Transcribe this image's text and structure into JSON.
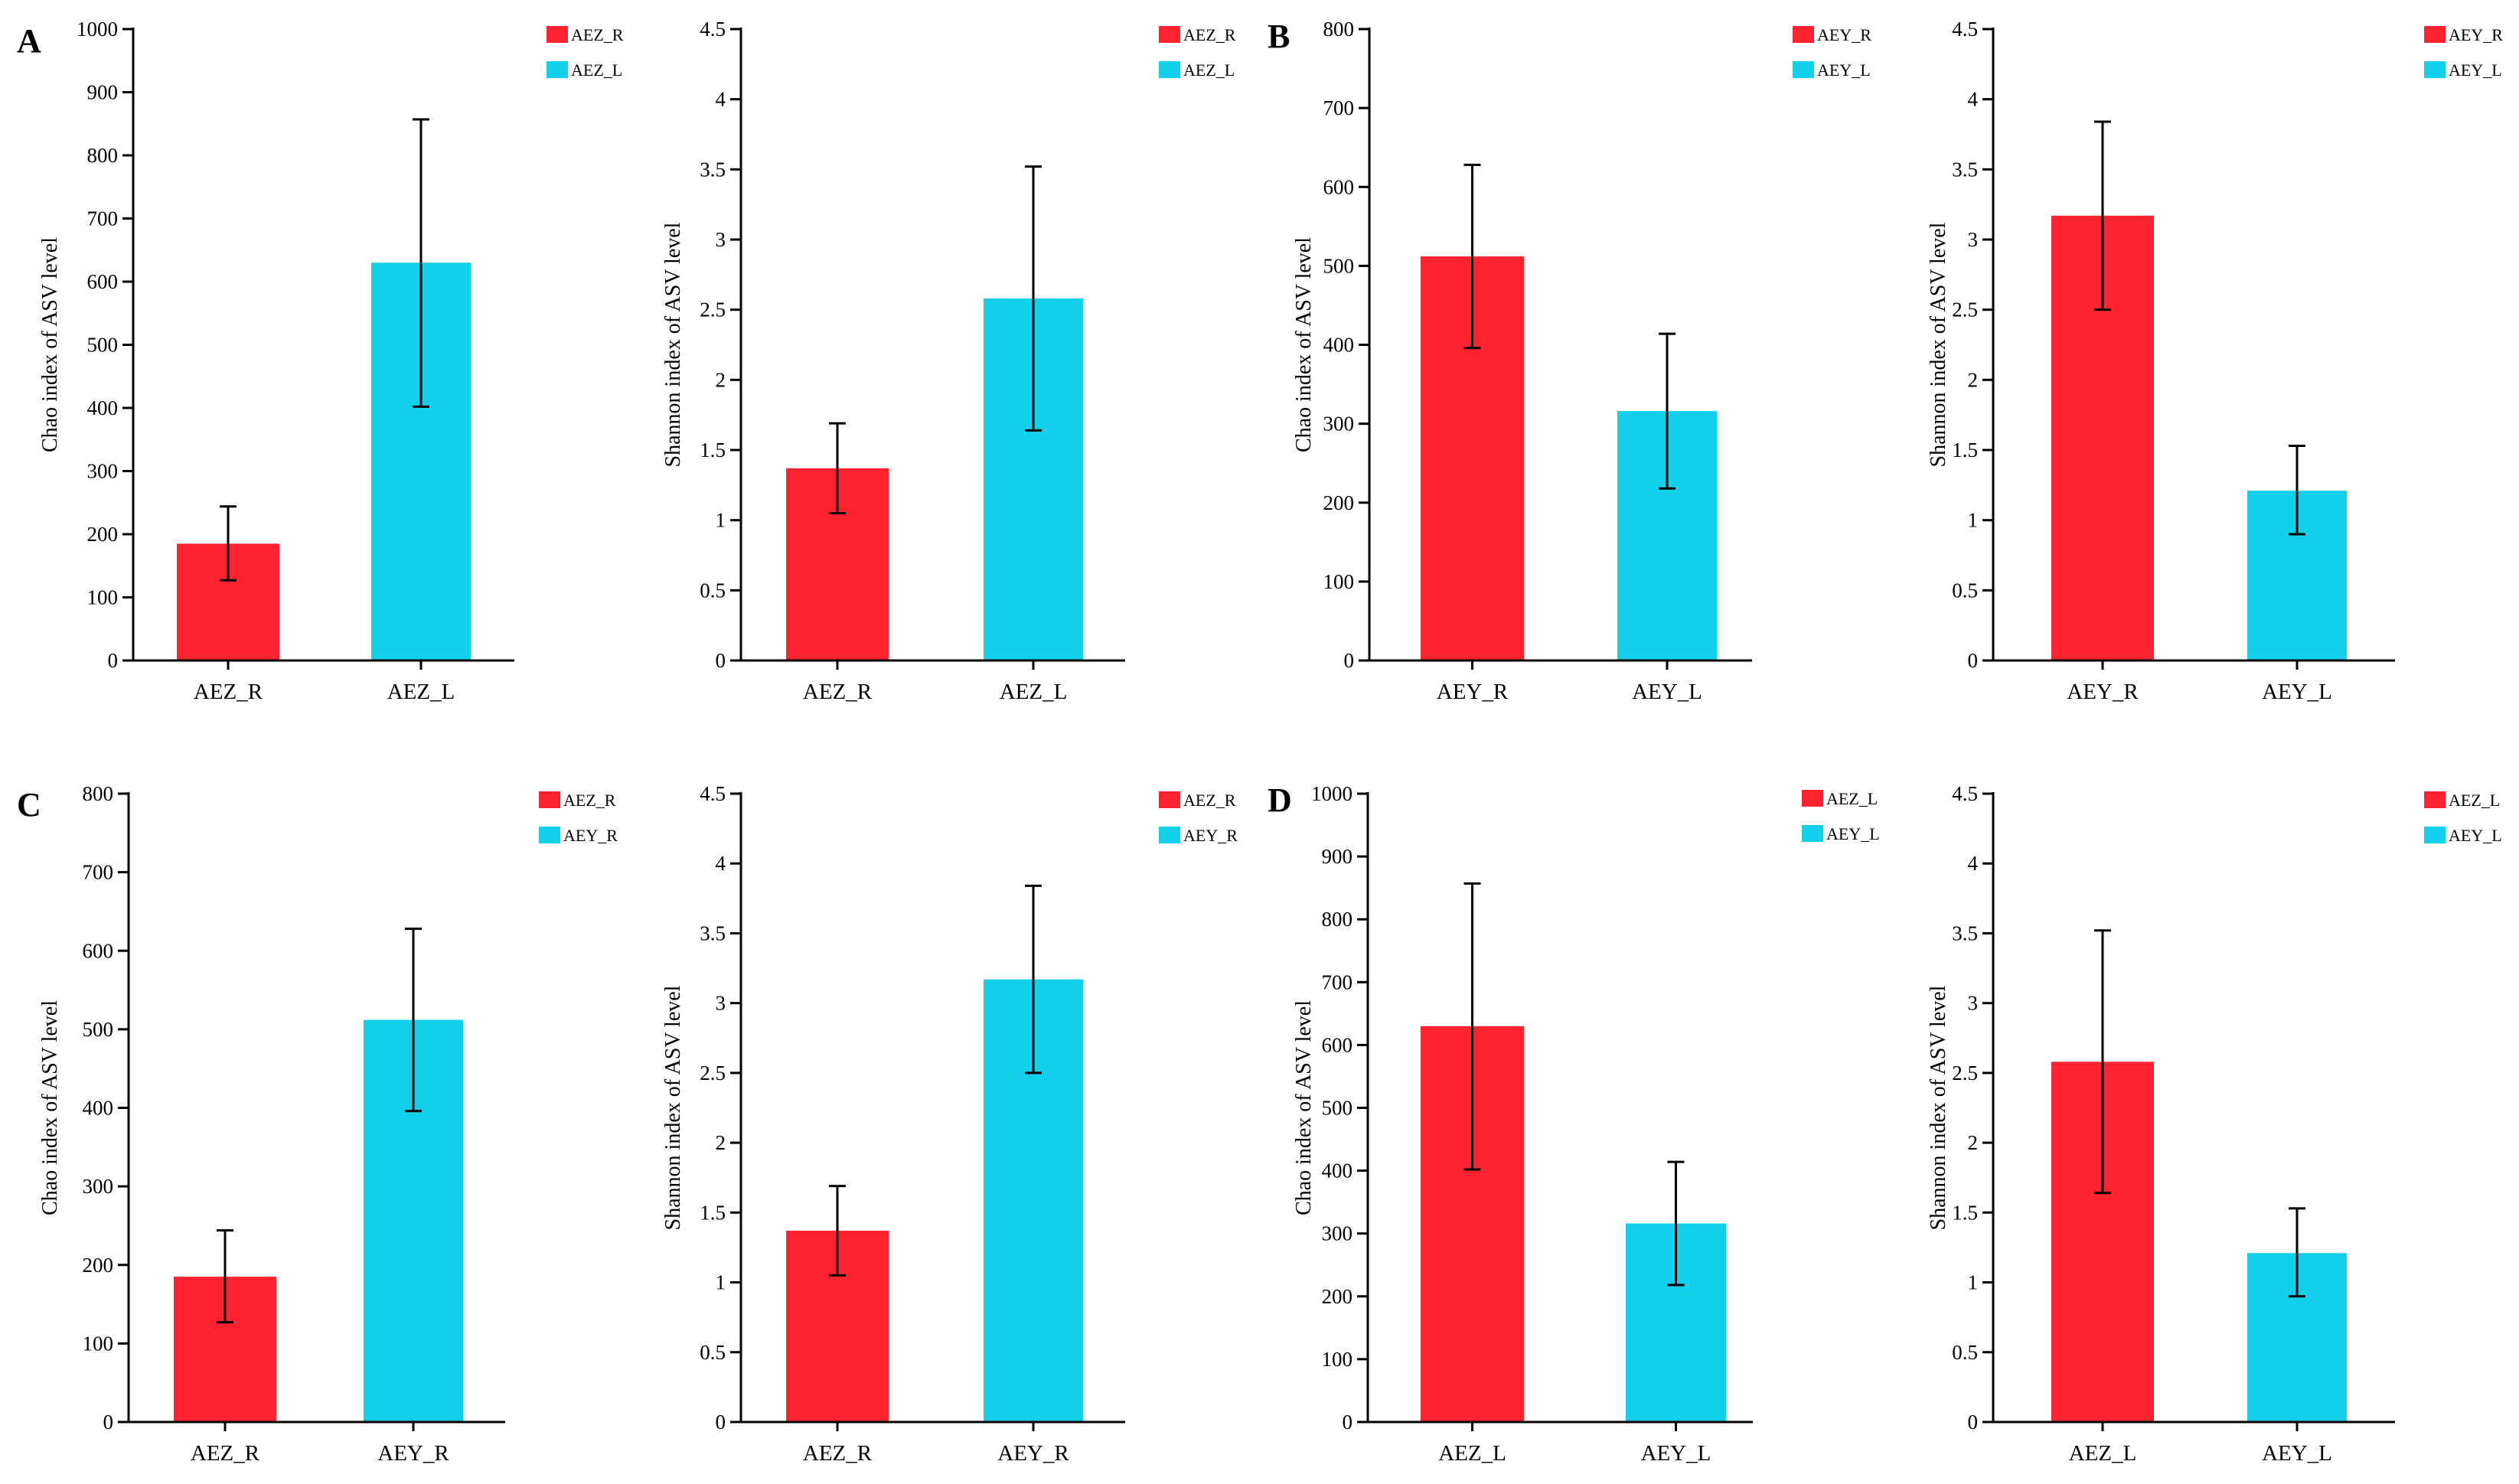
{
  "colors": {
    "red": "#FF2330",
    "cyan": "#12CFEC"
  },
  "panels": [
    "A",
    "B",
    "C",
    "D"
  ],
  "chart_data": [
    {
      "type": "bar",
      "panel": "A",
      "ylabel": "Chao index of ASV level",
      "ylim": [
        0,
        1000
      ],
      "yticks": [
        "0",
        "100",
        "200",
        "300",
        "400",
        "500",
        "600",
        "700",
        "800",
        "900",
        "1000"
      ],
      "categories": [
        "AEZ_R",
        "AEZ_L"
      ],
      "values": [
        185,
        630
      ],
      "error_low": [
        127,
        402
      ],
      "error_high": [
        244,
        857
      ],
      "legend": [
        "AEZ_R",
        "AEZ_L"
      ]
    },
    {
      "type": "bar",
      "panel": "A",
      "ylabel": "Shannon index of ASV level",
      "ylim": [
        0,
        4.5
      ],
      "yticks": [
        "0",
        "0.5",
        "1",
        "1.5",
        "2",
        "2.5",
        "3",
        "3.5",
        "4",
        "4.5"
      ],
      "categories": [
        "AEZ_R",
        "AEZ_L"
      ],
      "values": [
        1.37,
        2.58
      ],
      "error_low": [
        1.05,
        1.64
      ],
      "error_high": [
        1.69,
        3.52
      ],
      "legend": [
        "AEZ_R",
        "AEZ_L"
      ]
    },
    {
      "type": "bar",
      "panel": "B",
      "ylabel": "Chao index of ASV level",
      "ylim": [
        0,
        800
      ],
      "yticks": [
        "0",
        "100",
        "200",
        "300",
        "400",
        "500",
        "600",
        "700",
        "800"
      ],
      "categories": [
        "AEY_R",
        "AEY_L"
      ],
      "values": [
        512,
        316
      ],
      "error_low": [
        396,
        218
      ],
      "error_high": [
        628,
        414
      ],
      "legend": [
        "AEY_R",
        "AEY_L"
      ]
    },
    {
      "type": "bar",
      "panel": "B",
      "ylabel": "Shannon index of ASV level",
      "ylim": [
        0,
        4.5
      ],
      "yticks": [
        "0",
        "0.5",
        "1",
        "1.5",
        "2",
        "2.5",
        "3",
        "3.5",
        "4",
        "4.5"
      ],
      "categories": [
        "AEY_R",
        "AEY_L"
      ],
      "values": [
        3.17,
        1.21
      ],
      "error_low": [
        2.5,
        0.9
      ],
      "error_high": [
        3.84,
        1.53
      ],
      "legend": [
        "AEY_R",
        "AEY_L"
      ]
    },
    {
      "type": "bar",
      "panel": "C",
      "ylabel": "Chao index of ASV level",
      "ylim": [
        0,
        800
      ],
      "yticks": [
        "0",
        "100",
        "200",
        "300",
        "400",
        "500",
        "600",
        "700",
        "800"
      ],
      "categories": [
        "AEZ_R",
        "AEY_R"
      ],
      "values": [
        185,
        512
      ],
      "error_low": [
        127,
        396
      ],
      "error_high": [
        244,
        628
      ],
      "legend": [
        "AEZ_R",
        "AEY_R"
      ]
    },
    {
      "type": "bar",
      "panel": "C",
      "ylabel": "Shannon index of ASV level",
      "ylim": [
        0,
        4.5
      ],
      "yticks": [
        "0",
        "0.5",
        "1",
        "1.5",
        "2",
        "2.5",
        "3",
        "3.5",
        "4",
        "4.5"
      ],
      "categories": [
        "AEZ_R",
        "AEY_R"
      ],
      "values": [
        1.37,
        3.17
      ],
      "error_low": [
        1.05,
        2.5
      ],
      "error_high": [
        1.69,
        3.84
      ],
      "legend": [
        "AEZ_R",
        "AEY_R"
      ]
    },
    {
      "type": "bar",
      "panel": "D",
      "ylabel": "Chao index of ASV level",
      "ylim": [
        0,
        1000
      ],
      "yticks": [
        "0",
        "100",
        "200",
        "300",
        "400",
        "500",
        "600",
        "700",
        "800",
        "900",
        "1000"
      ],
      "categories": [
        "AEZ_L",
        "AEY_L"
      ],
      "values": [
        630,
        316
      ],
      "error_low": [
        402,
        218
      ],
      "error_high": [
        857,
        414
      ],
      "legend": [
        "AEZ_L",
        "AEY_L"
      ]
    },
    {
      "type": "bar",
      "panel": "D",
      "ylabel": "Shannon index of ASV level",
      "ylim": [
        0,
        4.5
      ],
      "yticks": [
        "0",
        "0.5",
        "1",
        "1.5",
        "2",
        "2.5",
        "3",
        "3.5",
        "4",
        "4.5"
      ],
      "categories": [
        "AEZ_L",
        "AEY_L"
      ],
      "values": [
        2.58,
        1.21
      ],
      "error_low": [
        1.64,
        0.9
      ],
      "error_high": [
        3.52,
        1.53
      ],
      "legend": [
        "AEZ_L",
        "AEY_L"
      ]
    }
  ]
}
